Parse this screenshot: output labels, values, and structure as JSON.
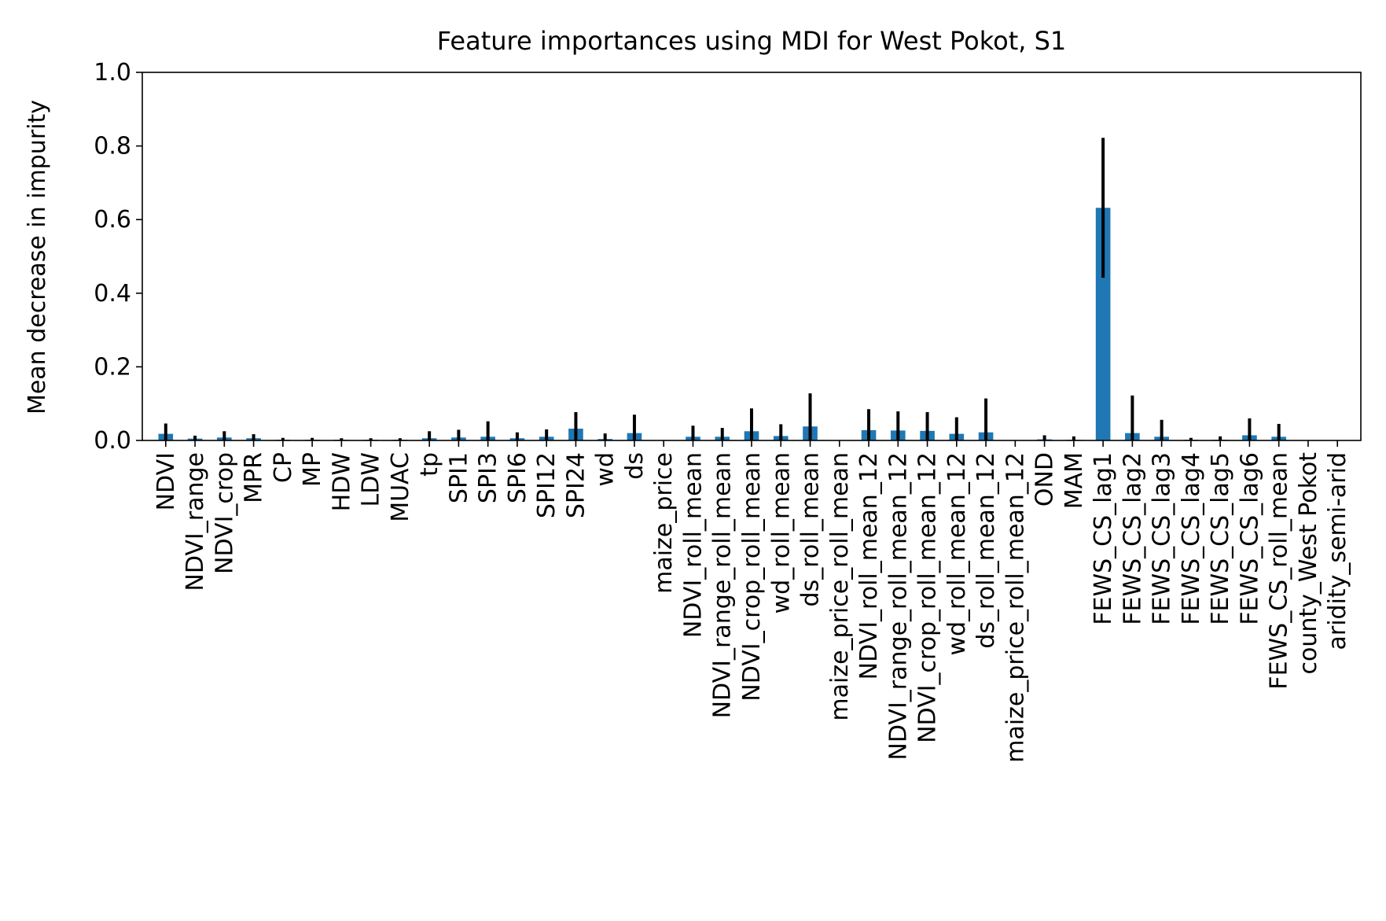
{
  "chart_data": {
    "type": "bar",
    "title": "Feature importances using MDI for West Pokot, S1",
    "xlabel": "",
    "ylabel": "Mean decrease in impurity",
    "ylim": [
      0,
      1.0
    ],
    "yticks": [
      "0.0",
      "0.2",
      "0.4",
      "0.6",
      "0.8",
      "1.0"
    ],
    "grid": false,
    "legend": "none",
    "colors": {
      "bar": "#1f77b4",
      "error_bar": "#000000",
      "axes": "#000000"
    },
    "categories": [
      "NDVI",
      "NDVI_range",
      "NDVI_crop",
      "MPR",
      "CP",
      "MP",
      "HDW",
      "LDW",
      "MUAC",
      "tp",
      "SPI1",
      "SPI3",
      "SPI6",
      "SPI12",
      "SPI24",
      "wd",
      "ds",
      "maize_price",
      "NDVI_roll_mean",
      "NDVI_range_roll_mean",
      "NDVI_crop_roll_mean",
      "wd_roll_mean",
      "ds_roll_mean",
      "maize_price_roll_mean",
      "NDVI_roll_mean_12",
      "NDVI_range_roll_mean_12",
      "NDVI_crop_roll_mean_12",
      "wd_roll_mean_12",
      "ds_roll_mean_12",
      "maize_price_roll_mean_12",
      "OND",
      "MAM",
      "FEWS_CS_lag1",
      "FEWS_CS_lag2",
      "FEWS_CS_lag3",
      "FEWS_CS_lag4",
      "FEWS_CS_lag5",
      "FEWS_CS_lag6",
      "FEWS_CS_roll_mean",
      "county_West Pokot",
      "aridity_semi-arid"
    ],
    "values": [
      0.018,
      0.005,
      0.008,
      0.006,
      0.002,
      0.002,
      0.002,
      0.002,
      0.002,
      0.006,
      0.008,
      0.01,
      0.006,
      0.01,
      0.032,
      0.004,
      0.02,
      0.0,
      0.01,
      0.01,
      0.025,
      0.012,
      0.038,
      0.0,
      0.028,
      0.027,
      0.026,
      0.018,
      0.022,
      0.0,
      0.003,
      0.002,
      0.632,
      0.02,
      0.01,
      0.002,
      0.002,
      0.014,
      0.01,
      0.0,
      0.0
    ],
    "errors": [
      0.028,
      0.008,
      0.017,
      0.011,
      0.005,
      0.005,
      0.004,
      0.004,
      0.004,
      0.019,
      0.021,
      0.042,
      0.016,
      0.02,
      0.045,
      0.015,
      0.05,
      0.0,
      0.03,
      0.024,
      0.062,
      0.032,
      0.09,
      0.0,
      0.057,
      0.052,
      0.051,
      0.045,
      0.092,
      0.0,
      0.011,
      0.009,
      0.19,
      0.102,
      0.046,
      0.005,
      0.009,
      0.046,
      0.035,
      0.0,
      0.0
    ]
  }
}
